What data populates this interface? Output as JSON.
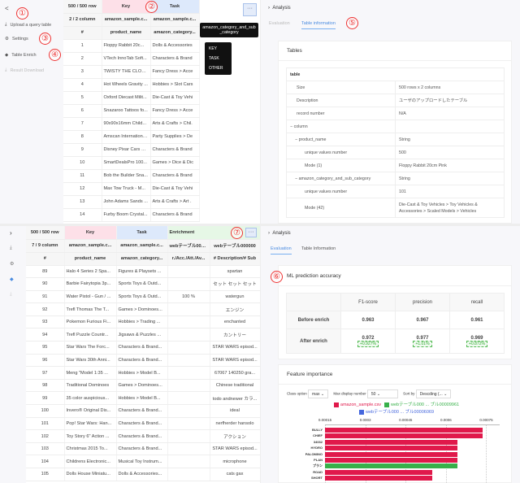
{
  "top_left": {
    "back": "<",
    "upload": "Upload a query table",
    "settings": "Settings",
    "enrich": "Table Enrich",
    "download": "Result Download",
    "row_count": "500 / 500 row",
    "col_count": "2 / 2 column",
    "key_label": "Key",
    "task_label": "Task",
    "src": [
      "amazon_sample.c...",
      "amazon_sample.c..."
    ],
    "hash": "#",
    "cols": [
      "product_name",
      "amazon_category..."
    ],
    "rows": [
      [
        "1",
        "Floppy Rabbit 20c...",
        "Dolls & Accessories"
      ],
      [
        "2",
        "VTech InnoTab Soft...",
        "Characters & Brand"
      ],
      [
        "3",
        "TWISTY THE CLOW...",
        "Fancy Dress > Acce"
      ],
      [
        "4",
        "Hot Wheels Gravity ...",
        "Hobbies > Slot Cars"
      ],
      [
        "5",
        "Oxford Diecast Milit...",
        "Die-Cast & Toy Vehi"
      ],
      [
        "6",
        "Snazaroo Tattoos fo...",
        "Fancy Dress > Acce"
      ],
      [
        "7",
        "90x90x16mm Child...",
        "Arts & Crafts > Chil."
      ],
      [
        "8",
        "Amscan International...",
        "Party Supplies > De"
      ],
      [
        "9",
        "Disney Pixar Cars R...",
        "Characters & Brand"
      ],
      [
        "10",
        "SmartDealsPro 100...",
        "Games > Dice & Dic"
      ],
      [
        "11",
        "Bob the Builder Sna...",
        "Characters & Brand"
      ],
      [
        "12",
        "Max Tow Truck - M...",
        "Die-Cast & Toy Vehi"
      ],
      [
        "13",
        "John Adams Sands ...",
        "Arts & Crafts > Art ."
      ],
      [
        "14",
        "Furby Boom Crystal...",
        "Characters & Brand"
      ]
    ],
    "more_btn": "···",
    "tooltip": "amazon_category_and_sub_category",
    "menu": [
      "KEY",
      "TASK",
      "OTHER"
    ]
  },
  "top_right": {
    "analysis": "Analysis",
    "tabs": [
      "Evaluation",
      "Table information"
    ],
    "active_tab": 1,
    "card_title": "Tables",
    "table_title": "table",
    "info": [
      [
        "Size",
        "500 rows x 2 columns",
        0
      ],
      [
        "Description",
        "ユーザのアップロードしたテーブル",
        0
      ],
      [
        "record number",
        "N/A",
        0
      ],
      [
        "column",
        "",
        1
      ],
      [
        "product_name",
        "String",
        2
      ],
      [
        "unique values number",
        "500",
        3
      ],
      [
        "Mode (1)",
        "Floppy Rabbit 20cm Pink",
        3
      ],
      [
        "amazon_category_and_sub_category",
        "String",
        2
      ],
      [
        "unique values number",
        "101",
        3
      ],
      [
        "Mode (42)",
        "Die-Cast & Toy Vehicles > Toy Vehicles & Accessories > Scaled Models > Vehicles",
        3
      ]
    ]
  },
  "bottom_left": {
    "row_count": "500 / 500 row",
    "col_count": "7 / 9 column",
    "key_label": "Key",
    "task_label": "Task",
    "enrich_label": "Enrichment",
    "src": [
      "amazon_sample.c...",
      "amazon_sample.c...",
      "webテーブル0000...",
      "webテーブル000000"
    ],
    "hash": "#",
    "cols": [
      "product_name",
      "amazon_category...",
      "r./Acc./Att./Av...",
      "# Description/# Sub"
    ],
    "rows": [
      [
        "89",
        "Halo 4 Series 2 Spa...",
        "Figures & Playsets ...",
        "",
        "spartan"
      ],
      [
        "90",
        "Barbie Fairytopia 3p...",
        "Sports Toys & Outd...",
        "",
        "セット セット セット"
      ],
      [
        "91",
        "Water Pistol - Gun / ...",
        "Sports Toys & Outd...",
        "100 %",
        "watergun"
      ],
      [
        "92",
        "Trefl Thomas The T...",
        "Games > Dominoes...",
        "",
        "エンジン"
      ],
      [
        "93",
        "Pokemon Furious Fi...",
        "Hobbies > Trading ...",
        "",
        "enchanted"
      ],
      [
        "94",
        "Trefl Puzzle Countr...",
        "Jigsaws & Puzzles ...",
        "",
        "カントリー"
      ],
      [
        "95",
        "Star Wars The Forc...",
        "Characters & Brand...",
        "",
        "STAR WARS episod..."
      ],
      [
        "96",
        "Star Wars 30th Anni...",
        "Characters & Brand...",
        "",
        "STAR WARS episod..."
      ],
      [
        "97",
        "Meng \"Model 1:35 ...",
        "Hobbies > Model B...",
        "",
        "67067 140250 gra..."
      ],
      [
        "98",
        "Traditional Dominoes",
        "Games > Dominoes...",
        "",
        "Chinese traditional"
      ],
      [
        "99",
        "35 color auspicious...",
        "Hobbies > Model B...",
        "",
        "todo andnewer カラ..."
      ],
      [
        "100",
        "Invero® Original Dis...",
        "Characters & Brand...",
        "",
        "ideal"
      ],
      [
        "101",
        "Pop! Star Wars: Han...",
        "Characters & Brand...",
        "",
        "nerfherder hansolo"
      ],
      [
        "102",
        "Toy Story 6\" Action ...",
        "Characters & Brand...",
        "",
        "アクション"
      ],
      [
        "103",
        "Christmas 2015 To...",
        "Characters & Brand...",
        "",
        "STAR WARS episod..."
      ],
      [
        "104",
        "Childrens Electronic...",
        "Musical Toy Instrum...",
        "",
        "microphone"
      ],
      [
        "105",
        "Dolls House Miniatu...",
        "Dolls & Accessories...",
        "",
        "cats gax"
      ]
    ],
    "more_btn": "···"
  },
  "bottom_right": {
    "analysis": "Analysis",
    "tabs": [
      "Evaluation",
      "Table Information"
    ],
    "active_tab": 0,
    "acc_title": "ML prediction accuracy",
    "metrics": [
      "F1-score",
      "precision",
      "recall"
    ],
    "before": {
      "label": "Before enrich",
      "values": [
        "0.963",
        "0.967",
        "0.961"
      ]
    },
    "after": {
      "label": "After enrich",
      "values": [
        "0.972",
        "0.977",
        "0.969"
      ],
      "deltas": [
        "+0.927%",
        "+1.01%",
        "+0.872%"
      ]
    },
    "fi_title": "Feature importance",
    "class_label": "Class option",
    "class_value": "max",
    "maxnum_label": "Max display number",
    "maxnum_value": "50",
    "sort_label": "Sort by",
    "sort_value": "Descding (...",
    "chart_data": {
      "type": "bar",
      "orientation": "horizontal",
      "legend": [
        {
          "name": "amazon_sample.csv",
          "color": "#e0194b"
        },
        {
          "name": "webテーブル000 ... ブル00009961",
          "color": "#38b04a"
        },
        {
          "name": "webテーブル000 ... ブル00006069",
          "color": "#4466dd"
        }
      ],
      "xticks": [
        "0.00015",
        "0.0003",
        "0.00045",
        "0.0006",
        "0.00075"
      ],
      "xlim": [
        0.00015,
        0.0008
      ],
      "categories": [
        "BULLY",
        "CHIEF",
        "34032",
        "HYDRO",
        "PALOMINO",
        "PLAN",
        "プラン",
        "ROAD",
        "SHORT"
      ],
      "values": [
        0.000735,
        0.000735,
        0.000643,
        0.000643,
        0.000643,
        0.000643,
        0.000643,
        0.00055,
        0.00055
      ],
      "series_index": [
        0,
        0,
        0,
        0,
        0,
        0,
        1,
        0,
        0
      ],
      "grid": true
    }
  },
  "annotations": [
    "①",
    "②",
    "③",
    "④",
    "⑤",
    "⑥",
    "⑦"
  ]
}
